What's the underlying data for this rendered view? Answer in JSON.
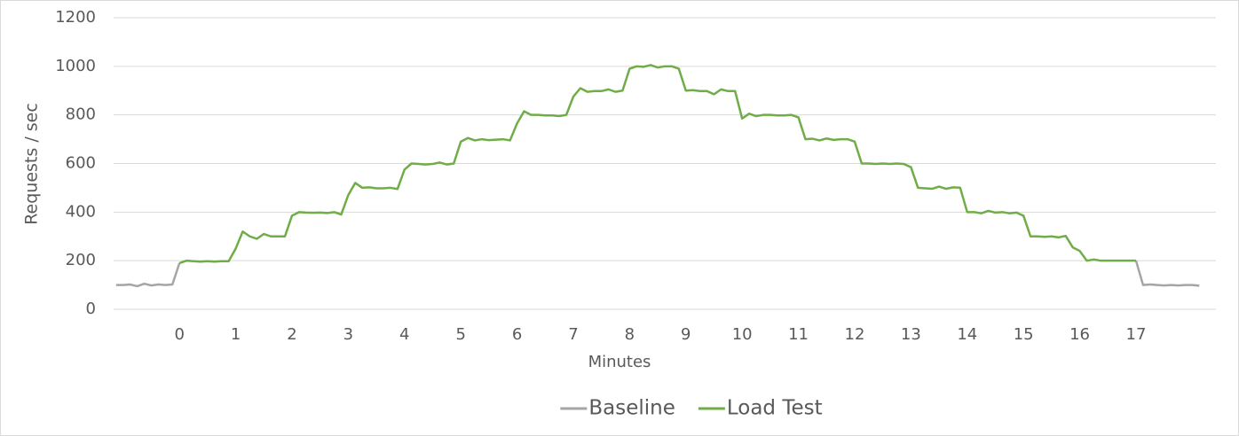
{
  "chart_data": {
    "type": "line",
    "x_label": "Minutes",
    "y_label": "Requests / sec",
    "x": [
      -1.125,
      -1,
      -0.875,
      -0.75,
      -0.625,
      -0.5,
      -0.375,
      -0.25,
      -0.125,
      0,
      0.125,
      0.25,
      0.375,
      0.5,
      0.625,
      0.75,
      0.875,
      1,
      1.125,
      1.25,
      1.375,
      1.5,
      1.625,
      1.75,
      1.875,
      2,
      2.125,
      2.25,
      2.375,
      2.5,
      2.625,
      2.75,
      2.875,
      3,
      3.125,
      3.25,
      3.375,
      3.5,
      3.625,
      3.75,
      3.875,
      4,
      4.125,
      4.25,
      4.375,
      4.5,
      4.625,
      4.75,
      4.875,
      5,
      5.125,
      5.25,
      5.375,
      5.5,
      5.625,
      5.75,
      5.875,
      6,
      6.125,
      6.25,
      6.375,
      6.5,
      6.625,
      6.75,
      6.875,
      7,
      7.125,
      7.25,
      7.375,
      7.5,
      7.625,
      7.75,
      7.875,
      8,
      8.125,
      8.25,
      8.375,
      8.5,
      8.625,
      8.75,
      8.875,
      9,
      9.125,
      9.25,
      9.375,
      9.5,
      9.625,
      9.75,
      9.875,
      10,
      10.125,
      10.25,
      10.375,
      10.5,
      10.625,
      10.75,
      10.875,
      11,
      11.125,
      11.25,
      11.375,
      11.5,
      11.625,
      11.75,
      11.875,
      12,
      12.125,
      12.25,
      12.375,
      12.5,
      12.625,
      12.75,
      12.875,
      13,
      13.125,
      13.25,
      13.375,
      13.5,
      13.625,
      13.75,
      13.875,
      14,
      14.125,
      14.25,
      14.375,
      14.5,
      14.625,
      14.75,
      14.875,
      15,
      15.125,
      15.25,
      15.375,
      15.5,
      15.625,
      15.75,
      15.875,
      16,
      16.125,
      16.25,
      16.375,
      16.5,
      16.625,
      16.75,
      16.875,
      17,
      17.125,
      17.25,
      17.375,
      17.5,
      17.625,
      17.75,
      17.875,
      18,
      18.125
    ],
    "series": [
      {
        "name": "Baseline",
        "color": "#a5a5a5",
        "values": [
          100,
          100,
          102,
          95,
          105,
          98,
          102,
          100,
          102,
          190,
          null,
          null,
          null,
          null,
          null,
          null,
          null,
          null,
          null,
          null,
          null,
          null,
          null,
          null,
          null,
          null,
          null,
          null,
          null,
          null,
          null,
          null,
          null,
          null,
          null,
          null,
          null,
          null,
          null,
          null,
          null,
          null,
          null,
          null,
          null,
          null,
          null,
          null,
          null,
          null,
          null,
          null,
          null,
          null,
          null,
          null,
          null,
          null,
          null,
          null,
          null,
          null,
          null,
          null,
          null,
          null,
          null,
          null,
          null,
          null,
          null,
          null,
          null,
          null,
          null,
          null,
          null,
          null,
          null,
          null,
          null,
          null,
          null,
          null,
          null,
          null,
          null,
          null,
          null,
          null,
          null,
          null,
          null,
          null,
          null,
          null,
          null,
          null,
          null,
          null,
          null,
          null,
          null,
          null,
          null,
          null,
          null,
          null,
          null,
          null,
          null,
          null,
          null,
          null,
          null,
          null,
          null,
          null,
          null,
          null,
          null,
          null,
          null,
          null,
          null,
          null,
          null,
          null,
          null,
          null,
          null,
          null,
          null,
          null,
          null,
          null,
          null,
          null,
          null,
          null,
          null,
          null,
          null,
          null,
          null,
          200,
          100,
          102,
          100,
          98,
          100,
          98,
          100,
          100,
          97
        ]
      },
      {
        "name": "Load Test",
        "color": "#70ad47",
        "values": [
          null,
          null,
          null,
          null,
          null,
          null,
          null,
          null,
          null,
          190,
          200,
          198,
          196,
          198,
          196,
          198,
          198,
          250,
          320,
          300,
          290,
          310,
          300,
          300,
          300,
          385,
          400,
          398,
          397,
          398,
          396,
          400,
          390,
          470,
          520,
          500,
          502,
          498,
          498,
          500,
          495,
          575,
          600,
          598,
          596,
          598,
          604,
          596,
          600,
          690,
          705,
          695,
          700,
          696,
          698,
          700,
          695,
          765,
          815,
          800,
          800,
          798,
          798,
          795,
          800,
          875,
          910,
          895,
          898,
          898,
          905,
          895,
          900,
          990,
          1000,
          998,
          1005,
          995,
          1000,
          1000,
          990,
          900,
          902,
          898,
          898,
          885,
          905,
          898,
          898,
          785,
          805,
          795,
          800,
          800,
          798,
          798,
          800,
          790,
          700,
          702,
          695,
          703,
          697,
          700,
          700,
          690,
          600,
          600,
          598,
          600,
          598,
          600,
          598,
          585,
          500,
          498,
          496,
          505,
          496,
          502,
          500,
          400,
          400,
          395,
          405,
          398,
          400,
          395,
          398,
          385,
          300,
          300,
          298,
          300,
          296,
          302,
          255,
          240,
          200,
          205,
          200,
          200,
          200,
          200,
          200,
          200,
          null,
          null,
          null,
          null,
          null,
          null,
          null,
          null,
          null
        ]
      }
    ],
    "xlim": [
      -1.17,
      18.42
    ],
    "xticks": [
      0,
      1,
      2,
      3,
      4,
      5,
      6,
      7,
      8,
      9,
      10,
      11,
      12,
      13,
      14,
      15,
      16,
      17
    ],
    "ylim": [
      0,
      1200
    ],
    "yticks": [
      0,
      200,
      400,
      600,
      800,
      1000,
      1200
    ],
    "grid": true,
    "legend": "bottom"
  }
}
